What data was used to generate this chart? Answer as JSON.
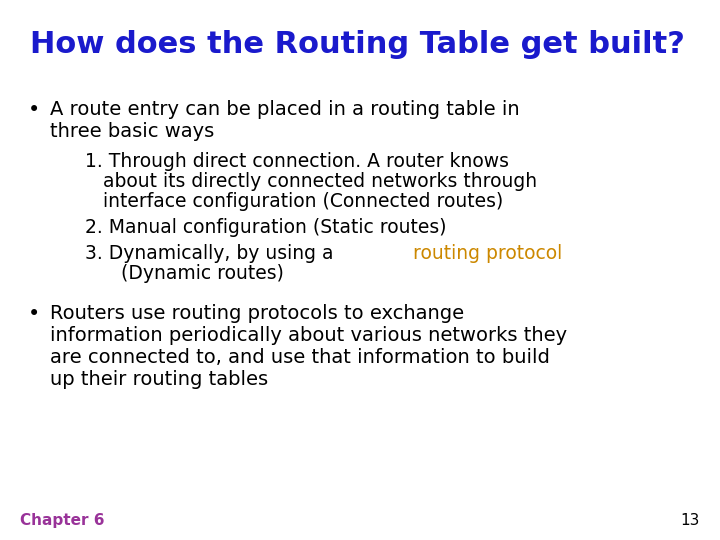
{
  "title": "How does the Routing Table get built?",
  "title_color": "#1a1acc",
  "title_fontsize": 22,
  "background_color": "#ffffff",
  "text_color": "#000000",
  "highlight_color": "#cc8800",
  "footer_color": "#993399",
  "footer_text": "Chapter 6",
  "footer_number": "13",
  "bullet1_line1": "A route entry can be placed in a routing table in",
  "bullet1_line2": "three basic ways",
  "sub1_line1": "1. Through direct connection. A router knows",
  "sub1_line2": "   about its directly connected networks through",
  "sub1_line3": "   interface configuration (Connected routes)",
  "sub2": "2. Manual configuration (Static routes)",
  "sub3_before": "3. Dynamically, by using a ",
  "sub3_highlight": "routing protocol",
  "sub3_line2": "   (Dynamic routes)",
  "bullet2_line1": "Routers use routing protocols to exchange",
  "bullet2_line2": "information periodically about various networks they",
  "bullet2_line3": "are connected to, and use that information to build",
  "bullet2_line4": "up their routing tables",
  "title_fontsize_pt": 22,
  "body_fontsize_pt": 14,
  "sub_fontsize_pt": 13.5,
  "footer_fontsize_pt": 11
}
